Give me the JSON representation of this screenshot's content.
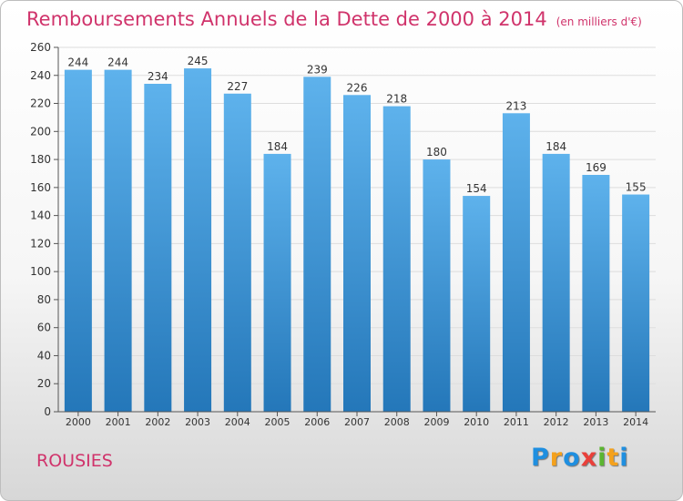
{
  "header": {
    "title": "Remboursements Annuels de la Dette de 2000 à 2014",
    "unit": "(en milliers d'€)"
  },
  "footer": {
    "commune": "ROUSIES",
    "logo_letters": [
      "P",
      "r",
      "o",
      "x",
      "i",
      "t",
      "i"
    ]
  },
  "colors": {
    "title": "#d0336b",
    "bar_top": "#5eb2ec",
    "bar_bottom": "#2477b9",
    "grid": "#dddddd"
  },
  "chart_data": {
    "type": "bar",
    "title": "Remboursements Annuels de la Dette de 2000 à 2014",
    "xlabel": "",
    "ylabel": "",
    "categories": [
      "2000",
      "2001",
      "2002",
      "2003",
      "2004",
      "2005",
      "2006",
      "2007",
      "2008",
      "2009",
      "2010",
      "2011",
      "2012",
      "2013",
      "2014"
    ],
    "values": [
      244,
      244,
      234,
      245,
      227,
      184,
      239,
      226,
      218,
      180,
      154,
      213,
      184,
      169,
      155
    ],
    "ylim": [
      0,
      260
    ],
    "yticks": [
      0,
      20,
      40,
      60,
      80,
      100,
      120,
      140,
      160,
      180,
      200,
      220,
      240,
      260
    ],
    "grid": true,
    "data_labels": true,
    "legend": "none"
  }
}
